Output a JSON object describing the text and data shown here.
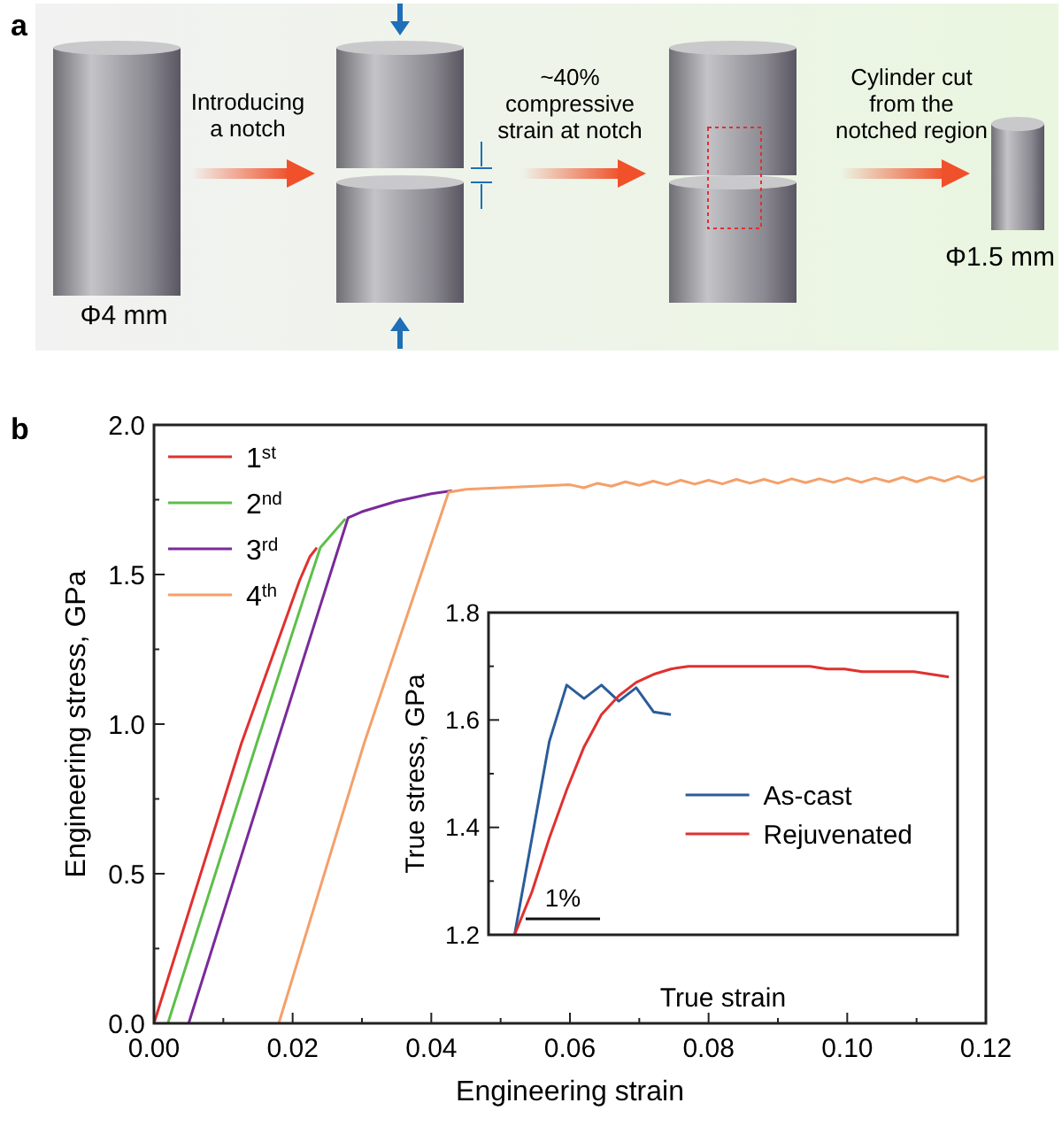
{
  "chart_data": [
    {
      "type": "other",
      "title": "a",
      "annotations": [
        "Introducing\na notch",
        "~40%\ncompressive\nstrain at notch",
        "Cylinder cut\nfrom the\nnotched region",
        "Φ4 mm",
        "Φ1.5 mm"
      ]
    },
    {
      "type": "line",
      "title": "b",
      "xlabel": "Engineering strain",
      "ylabel": "Engineering stress, GPa",
      "xlim": [
        0,
        0.12
      ],
      "xticks": [
        {
          "value": 0,
          "label": "0.00"
        },
        {
          "value": 0.01,
          "label": null
        },
        {
          "value": 0.02,
          "label": "0.02"
        },
        {
          "value": 0.03,
          "label": null
        },
        {
          "value": 0.04,
          "label": "0.04"
        },
        {
          "value": 0.05,
          "label": null
        },
        {
          "value": 0.06,
          "label": "0.06"
        },
        {
          "value": 0.07,
          "label": null
        },
        {
          "value": 0.08,
          "label": "0.08"
        },
        {
          "value": 0.09,
          "label": null
        },
        {
          "value": 0.1,
          "label": "0.10"
        },
        {
          "value": 0.11,
          "label": null
        },
        {
          "value": 0.12,
          "label": "0.12"
        }
      ],
      "ylim": [
        0,
        2
      ],
      "yticks": [
        {
          "value": 0,
          "label": "0.0"
        },
        {
          "value": 0.25,
          "label": null
        },
        0.5,
        {
          "value": 0.75,
          "label": null
        },
        {
          "value": 1,
          "label": "1.0"
        },
        {
          "value": 1.25,
          "label": null
        },
        1.5,
        {
          "value": 1.75,
          "label": null
        },
        {
          "value": 2,
          "label": "2.0"
        }
      ],
      "legend": "top left",
      "grid": false,
      "series": [
        {
          "name": "1$^{st}$",
          "color": "#e0312f",
          "x": [
            0,
            0.0126,
            0.019,
            0.021,
            0.0225,
            0.0235
          ],
          "values": [
            0,
            0.935,
            1.35,
            1.48,
            1.56,
            1.59
          ]
        },
        {
          "name": "2$^{nd}$",
          "color": "#5dbf4a",
          "x": [
            0.002,
            0.0148,
            0.022,
            0.024,
            0.0276
          ],
          "values": [
            0,
            0.935,
            1.45,
            1.59,
            1.686
          ]
        },
        {
          "name": "3$^{rd}$",
          "color": "#7a2a9a",
          "x": [
            0.005,
            0.0177,
            0.028,
            0.03,
            0.035,
            0.04,
            0.043
          ],
          "values": [
            0,
            0.935,
            1.69,
            1.71,
            1.745,
            1.77,
            1.78
          ]
        },
        {
          "name": "4$^{th}$",
          "color": "#f4a06a",
          "x": [
            0.018,
            0.0303,
            0.0425,
            0.045,
            0.05,
            0.055,
            0.06,
            0.062,
            0.064,
            0.066,
            0.068,
            0.07,
            0.072,
            0.074,
            0.076,
            0.078,
            0.08,
            0.082,
            0.084,
            0.086,
            0.088,
            0.09,
            0.092,
            0.094,
            0.096,
            0.098,
            0.1,
            0.102,
            0.104,
            0.106,
            0.108,
            0.11,
            0.112,
            0.114,
            0.116,
            0.118,
            0.12
          ],
          "values": [
            0,
            0.935,
            1.775,
            1.785,
            1.79,
            1.795,
            1.8,
            1.79,
            1.805,
            1.795,
            1.81,
            1.798,
            1.812,
            1.8,
            1.815,
            1.802,
            1.815,
            1.803,
            1.818,
            1.805,
            1.818,
            1.805,
            1.82,
            1.807,
            1.82,
            1.808,
            1.822,
            1.808,
            1.822,
            1.81,
            1.825,
            1.81,
            1.825,
            1.812,
            1.828,
            1.812,
            1.828
          ]
        }
      ]
    },
    {
      "type": "line",
      "xlabel": "True strain",
      "ylabel": "True stress, GPa",
      "tick_labels": "y",
      "categories": [
        null,
        null,
        null,
        null,
        null,
        null,
        null,
        null,
        null,
        null,
        null,
        null,
        null,
        null,
        null,
        null,
        null,
        null,
        null,
        null,
        null,
        null,
        null,
        null,
        null,
        null,
        null
      ],
      "ylim": [
        1.2,
        1.8
      ],
      "yticks": [
        1.2,
        {
          "value": 1.3,
          "label": null
        },
        1.4,
        {
          "value": 1.5,
          "label": null
        },
        1.6,
        {
          "value": 1.7,
          "label": null
        },
        1.8
      ],
      "legend": "right",
      "grid": false,
      "annotations": [
        "1%"
      ],
      "series": [
        {
          "name": "As-cast",
          "color": "#2a5d9a",
          "values": [
            null,
            1.2,
            1.38,
            1.56,
            1.665,
            1.64,
            1.665,
            1.635,
            1.66,
            1.615,
            1.61,
            null,
            null,
            null,
            null,
            null,
            null,
            null,
            null,
            null,
            null,
            null,
            null,
            null,
            null,
            null,
            null
          ]
        },
        {
          "name": "Rejuvenated",
          "color": "#e0312f",
          "values": [
            null,
            1.2,
            1.28,
            1.38,
            1.47,
            1.55,
            1.61,
            1.645,
            1.67,
            1.685,
            1.695,
            1.7,
            1.7,
            1.7,
            1.7,
            1.7,
            1.7,
            1.7,
            1.7,
            1.695,
            1.695,
            1.69,
            1.69,
            1.69,
            1.69,
            1.685,
            1.68
          ]
        }
      ]
    }
  ]
}
